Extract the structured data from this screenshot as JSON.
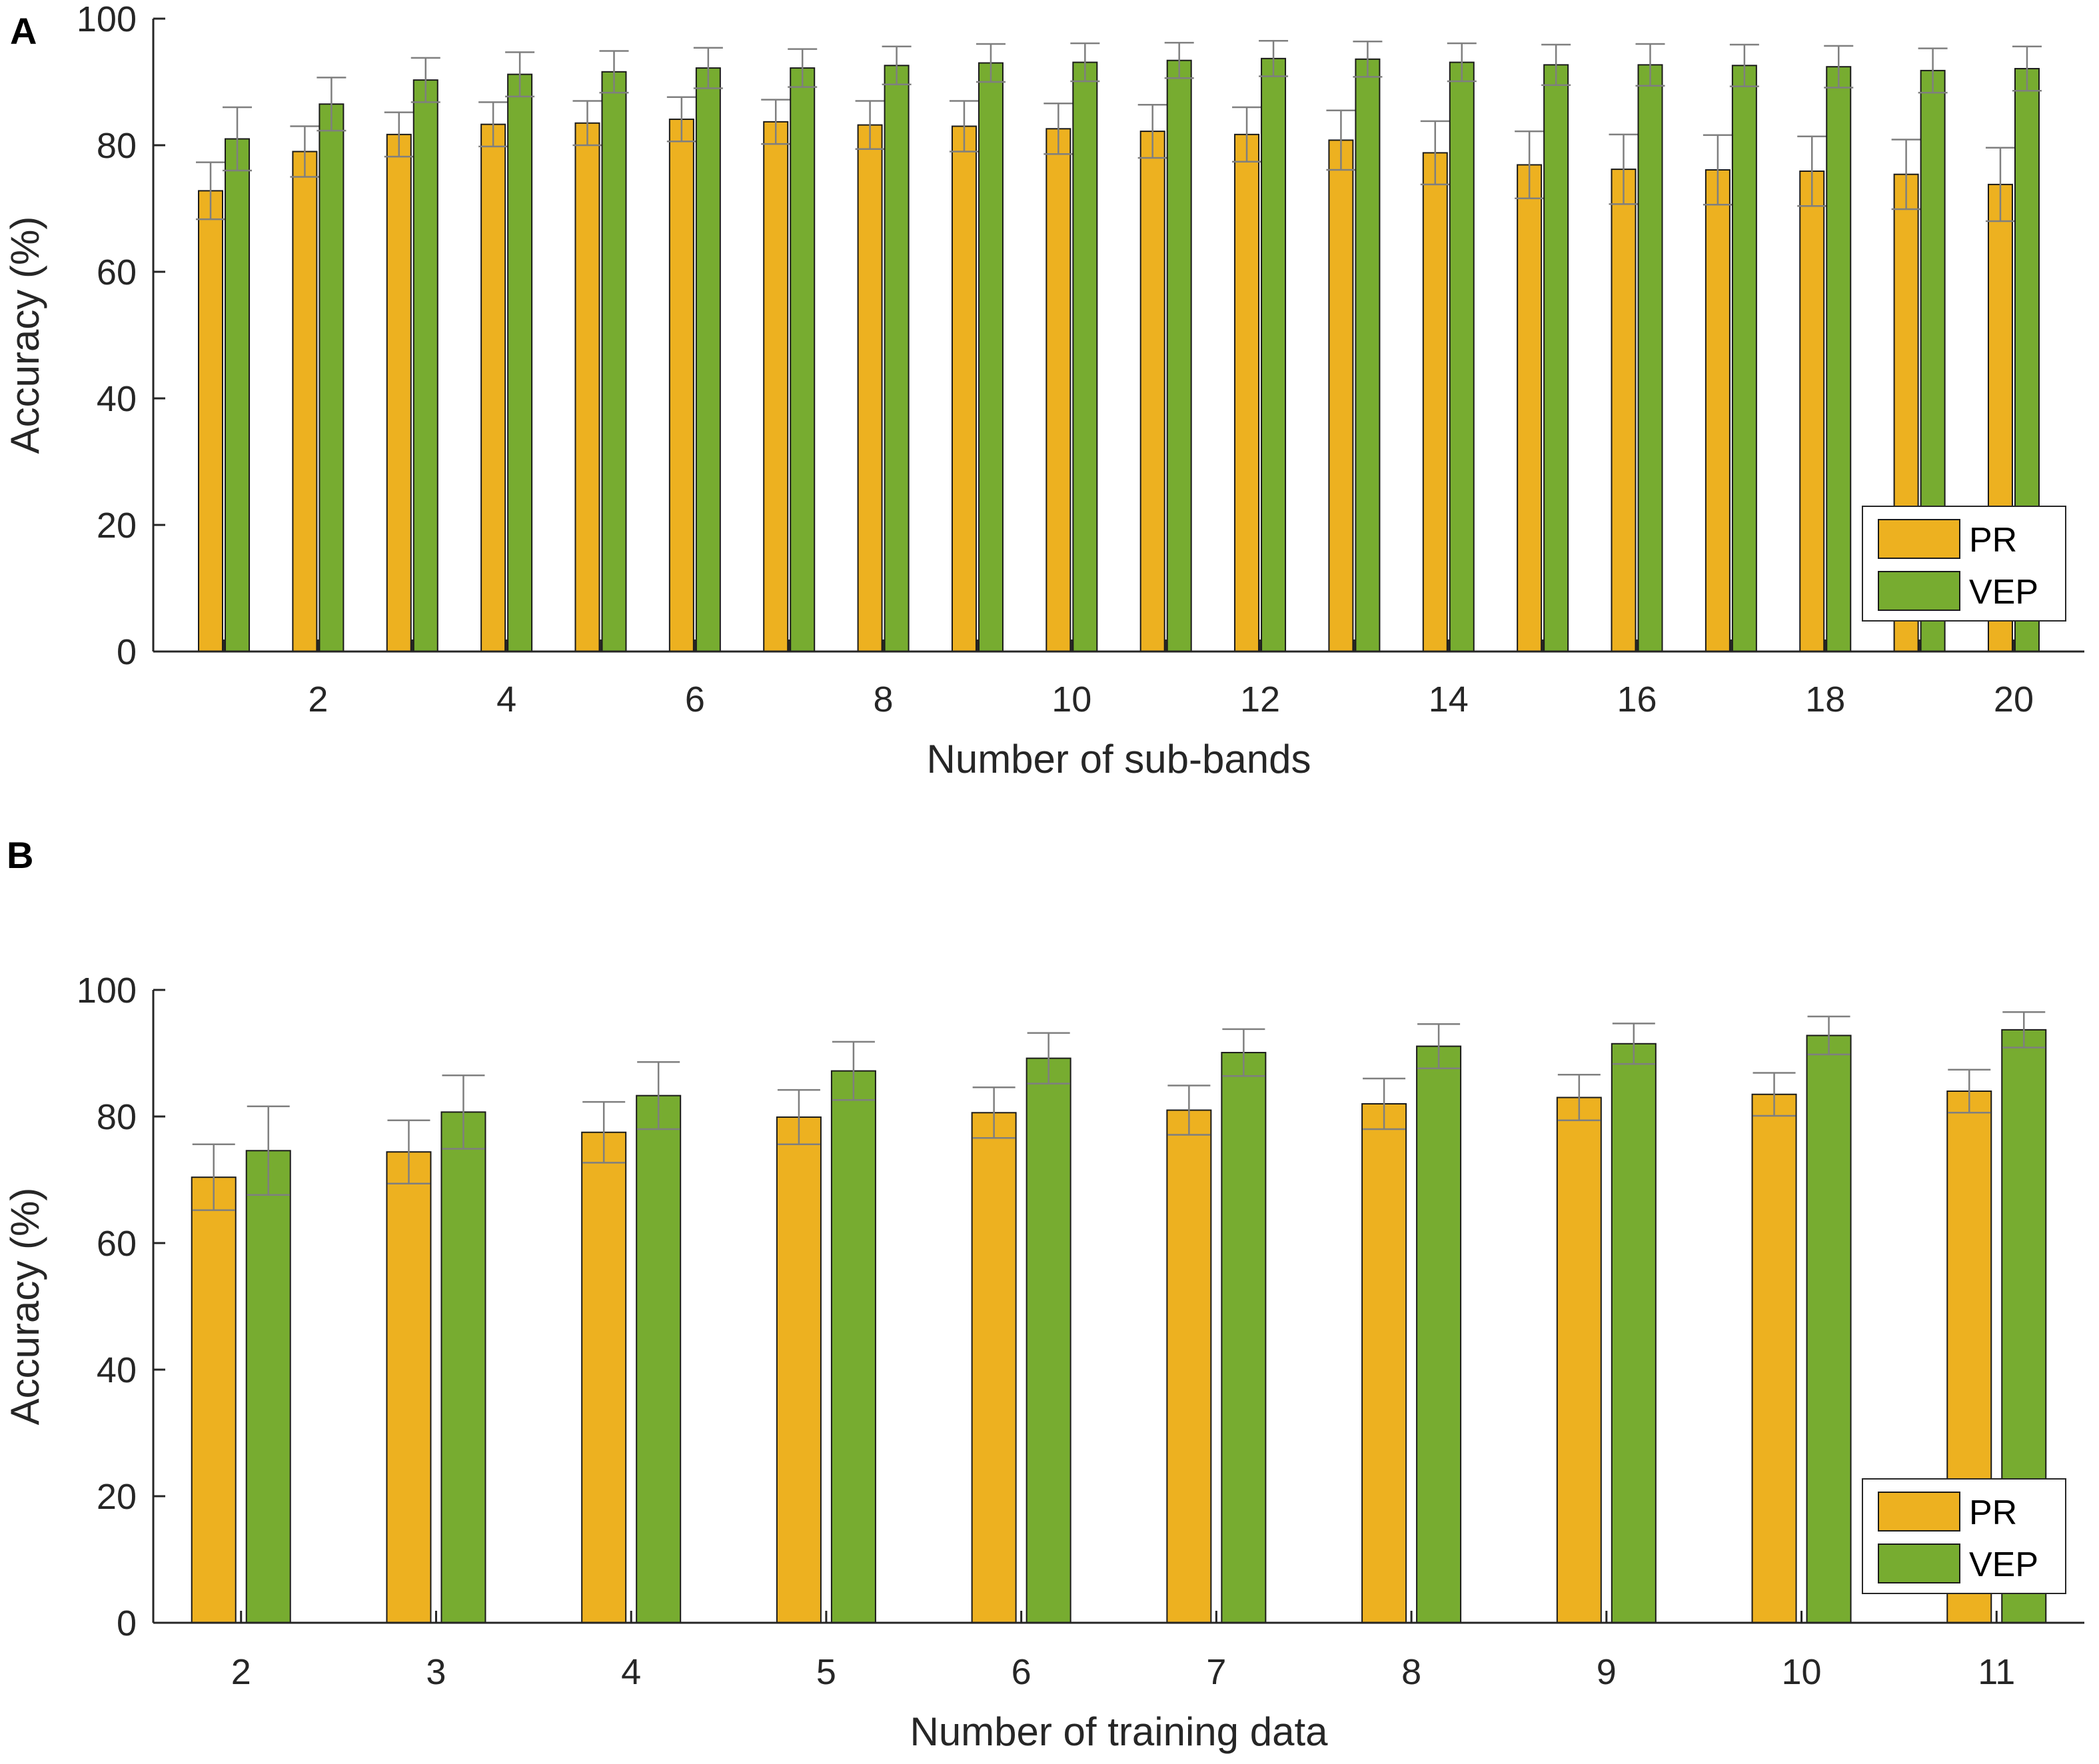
{
  "chart_data": [
    {
      "panel": "A",
      "type": "bar",
      "title": "",
      "xlabel": "Number of sub-bands",
      "ylabel": "Accuracy (%)",
      "ylim": [
        0,
        100
      ],
      "yticks": [
        0,
        20,
        40,
        60,
        80,
        100
      ],
      "x": [
        1,
        2,
        3,
        4,
        5,
        6,
        7,
        8,
        9,
        10,
        11,
        12,
        13,
        14,
        15,
        16,
        17,
        18,
        19,
        20
      ],
      "xtick_labels": [
        "",
        "2",
        "",
        "4",
        "",
        "6",
        "",
        "8",
        "",
        "10",
        "",
        "12",
        "",
        "14",
        "",
        "16",
        "",
        "18",
        "",
        "20"
      ],
      "legend_location": "lower-right",
      "series": [
        {
          "name": "PR",
          "color": "#EDB120",
          "values": [
            72.8,
            79.0,
            81.7,
            83.3,
            83.5,
            84.1,
            83.7,
            83.2,
            83.0,
            82.6,
            82.2,
            81.7,
            80.8,
            78.8,
            76.9,
            76.2,
            76.1,
            75.9,
            75.4,
            73.8
          ],
          "errors": [
            4.5,
            4.0,
            3.5,
            3.5,
            3.5,
            3.5,
            3.5,
            3.8,
            4.0,
            4.0,
            4.2,
            4.3,
            4.7,
            5.0,
            5.3,
            5.5,
            5.5,
            5.5,
            5.5,
            5.8
          ]
        },
        {
          "name": "VEP",
          "color": "#77AC30",
          "values": [
            81.0,
            86.5,
            90.3,
            91.2,
            91.6,
            92.2,
            92.2,
            92.6,
            93.0,
            93.1,
            93.4,
            93.7,
            93.6,
            93.1,
            92.7,
            92.7,
            92.6,
            92.4,
            91.8,
            92.1
          ],
          "errors": [
            5.0,
            4.2,
            3.5,
            3.5,
            3.3,
            3.2,
            3.0,
            3.0,
            3.0,
            3.0,
            2.8,
            2.8,
            2.8,
            3.0,
            3.2,
            3.3,
            3.3,
            3.3,
            3.5,
            3.5
          ]
        }
      ]
    },
    {
      "panel": "B",
      "type": "bar",
      "title": "",
      "xlabel": "Number of training data",
      "ylabel": "Accuracy (%)",
      "ylim": [
        0,
        100
      ],
      "yticks": [
        0,
        20,
        40,
        60,
        80,
        100
      ],
      "x": [
        2,
        3,
        4,
        5,
        6,
        7,
        8,
        9,
        10,
        11
      ],
      "xtick_labels": [
        "2",
        "3",
        "4",
        "5",
        "6",
        "7",
        "8",
        "9",
        "10",
        "11"
      ],
      "legend_location": "lower-right",
      "series": [
        {
          "name": "PR",
          "color": "#EDB120",
          "values": [
            70.4,
            74.4,
            77.5,
            79.9,
            80.6,
            81.0,
            82.0,
            83.0,
            83.5,
            84.0
          ],
          "errors": [
            5.2,
            5.0,
            4.8,
            4.3,
            4.0,
            3.9,
            4.0,
            3.6,
            3.4,
            3.4
          ]
        },
        {
          "name": "VEP",
          "color": "#77AC30",
          "values": [
            74.6,
            80.7,
            83.3,
            87.2,
            89.2,
            90.1,
            91.1,
            91.5,
            92.8,
            93.7
          ],
          "errors": [
            7.0,
            5.8,
            5.3,
            4.6,
            4.0,
            3.7,
            3.5,
            3.2,
            3.0,
            2.8
          ]
        }
      ]
    }
  ]
}
